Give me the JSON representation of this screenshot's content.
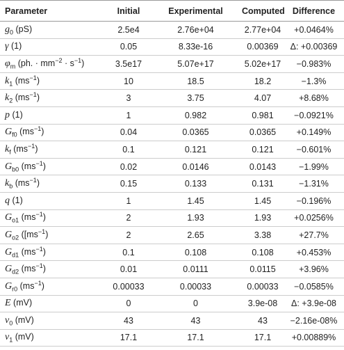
{
  "table": {
    "header": [
      "Parameter",
      "Initial",
      "Experimental",
      "Computed",
      "Difference"
    ],
    "rows": [
      {
        "param": [
          [
            "g",
            "i"
          ],
          [
            "0",
            "sub"
          ],
          [
            " (pS)",
            "r"
          ]
        ],
        "cells": [
          "2.5e4",
          "2.76e+04",
          "2.77e+04",
          "+0.0464%"
        ]
      },
      {
        "param": [
          [
            "γ",
            "i"
          ],
          [
            " (1)",
            "r"
          ]
        ],
        "cells": [
          "0.05",
          "8.33e-16",
          "0.00369",
          "Δ: +0.00369"
        ]
      },
      {
        "param": [
          [
            "φ",
            "i"
          ],
          [
            "m",
            "sub"
          ],
          [
            " (ph. · mm",
            "r"
          ],
          [
            "−2",
            "sup"
          ],
          [
            " · s",
            "r"
          ],
          [
            "−1",
            "sup"
          ],
          [
            ")",
            "r"
          ]
        ],
        "cells": [
          "3.5e17",
          "5.07e+17",
          "5.02e+17",
          "−0.983%"
        ]
      },
      {
        "param": [
          [
            "k",
            "i"
          ],
          [
            "1",
            "sub"
          ],
          [
            " (ms",
            "r"
          ],
          [
            "−1",
            "sup"
          ],
          [
            ")",
            "r"
          ]
        ],
        "cells": [
          "10",
          "18.5",
          "18.2",
          "−1.3%"
        ]
      },
      {
        "param": [
          [
            "k",
            "i"
          ],
          [
            "2",
            "sub"
          ],
          [
            " (ms",
            "r"
          ],
          [
            "−1",
            "sup"
          ],
          [
            ")",
            "r"
          ]
        ],
        "cells": [
          "3",
          "3.75",
          "4.07",
          "+8.68%"
        ]
      },
      {
        "param": [
          [
            "p",
            "i"
          ],
          [
            " (1)",
            "r"
          ]
        ],
        "cells": [
          "1",
          "0.982",
          "0.981",
          "−0.0921%"
        ]
      },
      {
        "param": [
          [
            "G",
            "i"
          ],
          [
            "f0",
            "sub"
          ],
          [
            " (ms",
            "r"
          ],
          [
            "−1",
            "sup"
          ],
          [
            ")",
            "r"
          ]
        ],
        "cells": [
          "0.04",
          "0.0365",
          "0.0365",
          "+0.149%"
        ]
      },
      {
        "param": [
          [
            "k",
            "i"
          ],
          [
            "f",
            "sub"
          ],
          [
            " (ms",
            "r"
          ],
          [
            "−1",
            "sup"
          ],
          [
            ")",
            "r"
          ]
        ],
        "cells": [
          "0.1",
          "0.121",
          "0.121",
          "−0.601%"
        ]
      },
      {
        "param": [
          [
            "G",
            "i"
          ],
          [
            "b0",
            "sub"
          ],
          [
            " (ms",
            "r"
          ],
          [
            "−1",
            "sup"
          ],
          [
            ")",
            "r"
          ]
        ],
        "cells": [
          "0.02",
          "0.0146",
          "0.0143",
          "−1.99%"
        ]
      },
      {
        "param": [
          [
            "k",
            "i"
          ],
          [
            "b",
            "sub"
          ],
          [
            " (ms",
            "r"
          ],
          [
            "−1",
            "sup"
          ],
          [
            ")",
            "r"
          ]
        ],
        "cells": [
          "0.15",
          "0.133",
          "0.131",
          "−1.31%"
        ]
      },
      {
        "param": [
          [
            "q",
            "i"
          ],
          [
            " (1)",
            "r"
          ]
        ],
        "cells": [
          "1",
          "1.45",
          "1.45",
          "−0.196%"
        ]
      },
      {
        "param": [
          [
            "G",
            "i"
          ],
          [
            "o1",
            "sub"
          ],
          [
            " (ms",
            "r"
          ],
          [
            "−1",
            "sup"
          ],
          [
            ")",
            "r"
          ]
        ],
        "cells": [
          "2",
          "1.93",
          "1.93",
          "+0.0256%"
        ]
      },
      {
        "param": [
          [
            "G",
            "i"
          ],
          [
            "o2",
            "sub"
          ],
          [
            " ([ms",
            "r"
          ],
          [
            "−1",
            "sup"
          ],
          [
            ")",
            "r"
          ]
        ],
        "cells": [
          "2",
          "2.65",
          "3.38",
          "+27.7%"
        ]
      },
      {
        "param": [
          [
            "G",
            "i"
          ],
          [
            "d1",
            "sub"
          ],
          [
            " (ms",
            "r"
          ],
          [
            "−1",
            "sup"
          ],
          [
            ")",
            "r"
          ]
        ],
        "cells": [
          "0.1",
          "0.108",
          "0.108",
          "+0.453%"
        ]
      },
      {
        "param": [
          [
            "G",
            "i"
          ],
          [
            "d2",
            "sub"
          ],
          [
            " (ms",
            "r"
          ],
          [
            "−1",
            "sup"
          ],
          [
            ")",
            "r"
          ]
        ],
        "cells": [
          "0.01",
          "0.0111",
          "0.0115",
          "+3.96%"
        ]
      },
      {
        "param": [
          [
            "G",
            "i"
          ],
          [
            "r0",
            "sub"
          ],
          [
            " (ms",
            "r"
          ],
          [
            "−1",
            "sup"
          ],
          [
            ")",
            "r"
          ]
        ],
        "cells": [
          "0.00033",
          "0.00033",
          "0.00033",
          "−0.0585%"
        ]
      },
      {
        "param": [
          [
            "E",
            "i"
          ],
          [
            " (mV)",
            "r"
          ]
        ],
        "cells": [
          "0",
          "0",
          "3.9e-08",
          "Δ: +3.9e-08"
        ]
      },
      {
        "param": [
          [
            "v",
            "i"
          ],
          [
            "0",
            "sub"
          ],
          [
            " (mV)",
            "r"
          ]
        ],
        "cells": [
          "43",
          "43",
          "43",
          "−2.16e-08%"
        ]
      },
      {
        "param": [
          [
            "v",
            "i"
          ],
          [
            "1",
            "sub"
          ],
          [
            " (mV)",
            "r"
          ]
        ],
        "cells": [
          "17.1",
          "17.1",
          "17.1",
          "+0.00889%"
        ]
      }
    ]
  }
}
